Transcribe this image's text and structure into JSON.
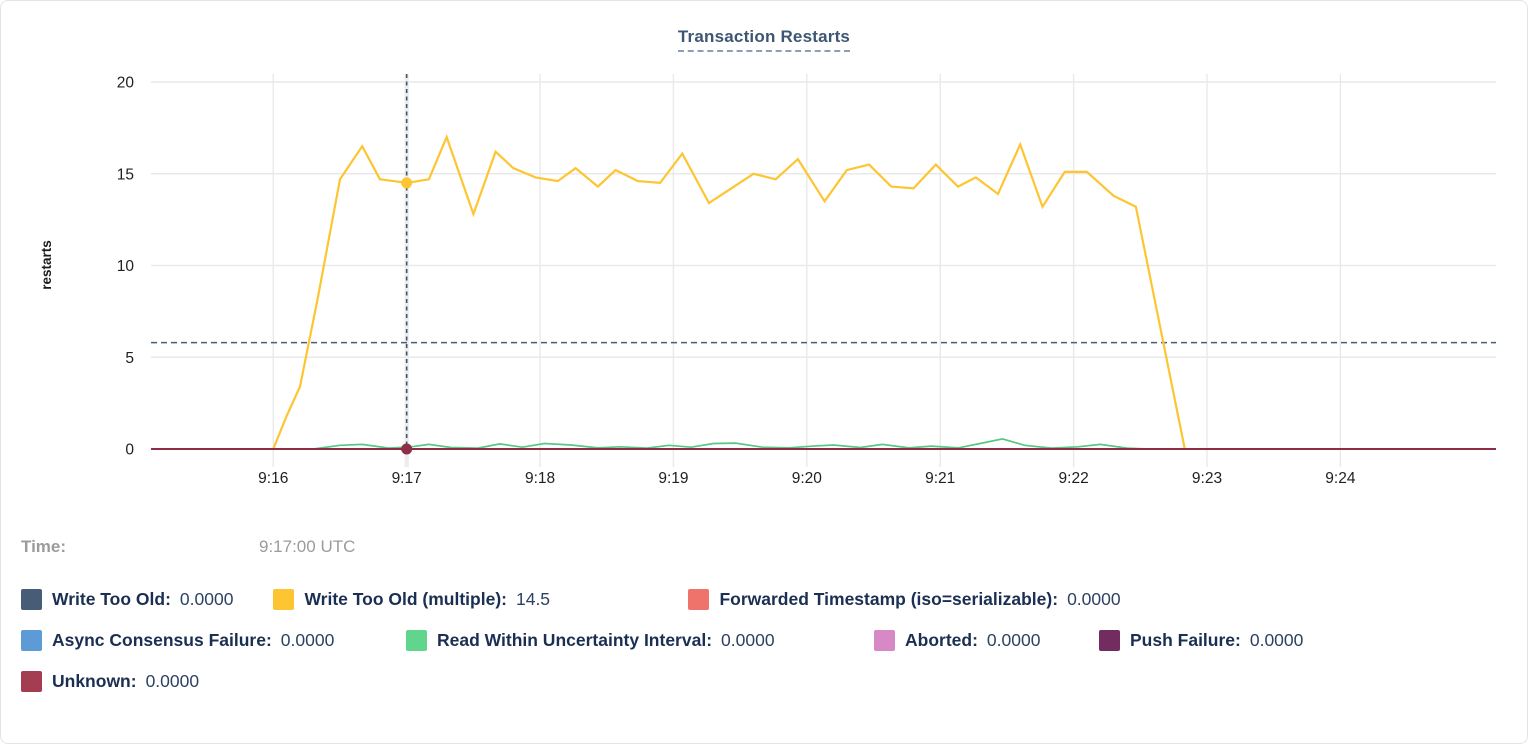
{
  "title": "Transaction Restarts",
  "tooltip": {
    "time_label": "Time:",
    "time_value": "9:17:00 UTC"
  },
  "legend": {
    "rows": [
      [
        {
          "label": "Write Too Old:",
          "value": "0.0000",
          "color": "#475c77"
        },
        {
          "label": "Write Too Old (multiple):",
          "value": "14.5",
          "color": "#fdc531"
        },
        {
          "label": "Forwarded Timestamp (iso=serializable):",
          "value": "0.0000",
          "color": "#ef736b"
        }
      ],
      [
        {
          "label": "Async Consensus Failure:",
          "value": "0.0000",
          "color": "#5c9bd6"
        },
        {
          "label": "Read Within Uncertainty Interval:",
          "value": "0.0000",
          "color": "#5fd68c"
        },
        {
          "label": "Aborted:",
          "value": "0.0000",
          "color": "#d689c5"
        },
        {
          "label": "Push Failure:",
          "value": "0.0000",
          "color": "#722c5f"
        }
      ],
      [
        {
          "label": "Unknown:",
          "value": "0.0000",
          "color": "#a43d52"
        }
      ]
    ]
  },
  "chart_data": {
    "type": "line",
    "title": "Transaction Restarts",
    "ylabel": "restarts",
    "ylim": [
      0,
      20
    ],
    "yticks": [
      0,
      5,
      10,
      15,
      20
    ],
    "xticks": [
      "9:16",
      "9:17",
      "9:18",
      "9:19",
      "9:20",
      "9:21",
      "9:22",
      "9:23",
      "9:24"
    ],
    "x_domain": [
      "9:15:05",
      "9:25:10"
    ],
    "grid": true,
    "legend_position": "bottom",
    "reference_line_y": 5.8,
    "crosshair": {
      "time": "9:17:00",
      "points": [
        {
          "series": "Write Too Old (multiple)",
          "value": 14.5
        },
        {
          "series": "Unknown",
          "value": 0
        }
      ]
    },
    "series": [
      {
        "name": "Write Too Old",
        "color": "#475c77",
        "width": 1.5,
        "points": [
          [
            "9:15:05",
            0
          ],
          [
            "9:25:10",
            0
          ]
        ]
      },
      {
        "name": "Forwarded Timestamp (iso=serializable)",
        "color": "#ef736b",
        "width": 1.5,
        "points": [
          [
            "9:15:05",
            0
          ],
          [
            "9:25:10",
            0
          ]
        ]
      },
      {
        "name": "Async Consensus Failure",
        "color": "#5c9bd6",
        "width": 1.5,
        "points": [
          [
            "9:15:05",
            0
          ],
          [
            "9:25:10",
            0
          ]
        ]
      },
      {
        "name": "Aborted",
        "color": "#d689c5",
        "width": 1.5,
        "points": [
          [
            "9:15:05",
            0
          ],
          [
            "9:25:10",
            0
          ]
        ]
      },
      {
        "name": "Push Failure",
        "color": "#722c5f",
        "width": 1.5,
        "points": [
          [
            "9:15:05",
            0
          ],
          [
            "9:25:10",
            0
          ]
        ]
      },
      {
        "name": "Read Within Uncertainty Interval",
        "color": "#57c786",
        "width": 1.7,
        "points": [
          [
            "9:16:18",
            0
          ],
          [
            "9:16:30",
            0.2
          ],
          [
            "9:16:40",
            0.25
          ],
          [
            "9:16:52",
            0.05
          ],
          [
            "9:17:02",
            0.12
          ],
          [
            "9:17:10",
            0.25
          ],
          [
            "9:17:20",
            0.08
          ],
          [
            "9:17:32",
            0.05
          ],
          [
            "9:17:42",
            0.28
          ],
          [
            "9:17:52",
            0.1
          ],
          [
            "9:18:02",
            0.3
          ],
          [
            "9:18:14",
            0.22
          ],
          [
            "9:18:26",
            0.06
          ],
          [
            "9:18:36",
            0.12
          ],
          [
            "9:18:48",
            0.05
          ],
          [
            "9:18:58",
            0.2
          ],
          [
            "9:19:08",
            0.1
          ],
          [
            "9:19:18",
            0.3
          ],
          [
            "9:19:28",
            0.32
          ],
          [
            "9:19:40",
            0.1
          ],
          [
            "9:19:52",
            0.06
          ],
          [
            "9:20:02",
            0.15
          ],
          [
            "9:20:12",
            0.22
          ],
          [
            "9:20:24",
            0.08
          ],
          [
            "9:20:34",
            0.25
          ],
          [
            "9:20:46",
            0.06
          ],
          [
            "9:20:56",
            0.16
          ],
          [
            "9:21:08",
            0.06
          ],
          [
            "9:21:18",
            0.3
          ],
          [
            "9:21:28",
            0.55
          ],
          [
            "9:21:38",
            0.2
          ],
          [
            "9:21:50",
            0.05
          ],
          [
            "9:22:02",
            0.12
          ],
          [
            "9:22:12",
            0.25
          ],
          [
            "9:22:24",
            0.05
          ],
          [
            "9:22:34",
            0
          ]
        ]
      },
      {
        "name": "Write Too Old (multiple)",
        "color": "#fdc531",
        "width": 2.2,
        "points": [
          [
            "9:16:00",
            0
          ],
          [
            "9:16:06",
            1.8
          ],
          [
            "9:16:12",
            3.4
          ],
          [
            "9:16:20",
            8.2
          ],
          [
            "9:16:30",
            14.7
          ],
          [
            "9:16:40",
            16.5
          ],
          [
            "9:16:48",
            14.7
          ],
          [
            "9:17:00",
            14.5
          ],
          [
            "9:17:10",
            14.7
          ],
          [
            "9:17:18",
            17.0
          ],
          [
            "9:17:30",
            12.8
          ],
          [
            "9:17:40",
            16.2
          ],
          [
            "9:17:48",
            15.3
          ],
          [
            "9:17:58",
            14.8
          ],
          [
            "9:18:08",
            14.6
          ],
          [
            "9:18:16",
            15.3
          ],
          [
            "9:18:26",
            14.3
          ],
          [
            "9:18:34",
            15.2
          ],
          [
            "9:18:44",
            14.6
          ],
          [
            "9:18:54",
            14.5
          ],
          [
            "9:19:04",
            16.1
          ],
          [
            "9:19:16",
            13.4
          ],
          [
            "9:19:26",
            14.2
          ],
          [
            "9:19:36",
            15.0
          ],
          [
            "9:19:46",
            14.7
          ],
          [
            "9:19:56",
            15.8
          ],
          [
            "9:20:08",
            13.5
          ],
          [
            "9:20:18",
            15.2
          ],
          [
            "9:20:28",
            15.5
          ],
          [
            "9:20:38",
            14.3
          ],
          [
            "9:20:48",
            14.2
          ],
          [
            "9:20:58",
            15.5
          ],
          [
            "9:21:08",
            14.3
          ],
          [
            "9:21:16",
            14.8
          ],
          [
            "9:21:26",
            13.9
          ],
          [
            "9:21:36",
            16.6
          ],
          [
            "9:21:46",
            13.2
          ],
          [
            "9:21:56",
            15.1
          ],
          [
            "9:22:06",
            15.1
          ],
          [
            "9:22:18",
            13.8
          ],
          [
            "9:22:28",
            13.2
          ],
          [
            "9:22:50",
            0
          ]
        ]
      },
      {
        "name": "Unknown",
        "color": "#8e2d44",
        "width": 2,
        "points": [
          [
            "9:15:05",
            0
          ],
          [
            "9:25:10",
            0
          ]
        ]
      }
    ],
    "colors": {
      "grid": "#e9e9e9",
      "crosshair": "#3f556b",
      "hover_band": "#ededed",
      "tick_text": "#212121",
      "crosshair_dot_bottom": "#8d3047"
    }
  }
}
